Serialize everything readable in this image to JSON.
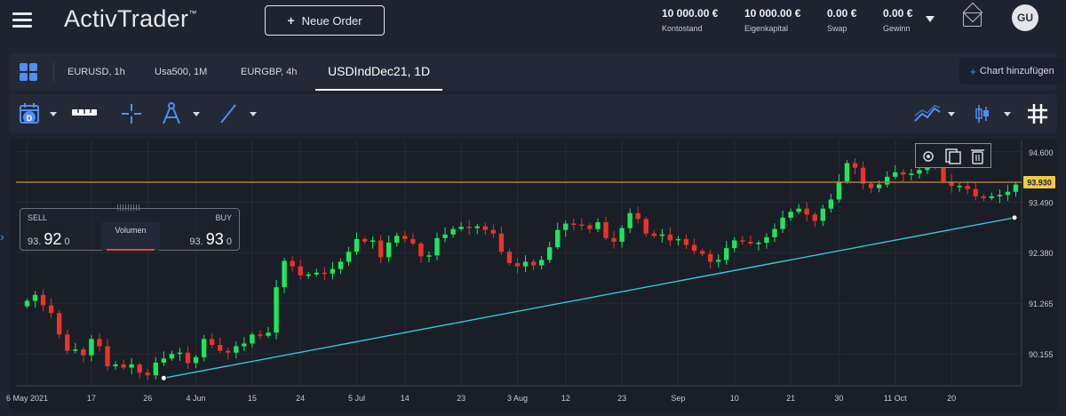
{
  "header": {
    "logo": "ActivTrader",
    "logo_mark": "™",
    "new_order_label": "Neue Order",
    "account": [
      {
        "value": "10 000.00 €",
        "label": "Kontostand"
      },
      {
        "value": "10 000.00 €",
        "label": "Eigenkapital"
      },
      {
        "value": "0.00 €",
        "label": "Swap"
      },
      {
        "value": "0.00 €",
        "label": "Gewinn"
      }
    ],
    "user_initials": "GU"
  },
  "tabs": [
    {
      "label": "EURUSD, 1h"
    },
    {
      "label": "Usa500, 1M"
    },
    {
      "label": "EURGBP, 4h"
    },
    {
      "label": "USDIndDec21, 1D",
      "active": true
    }
  ],
  "add_chart_label": "Chart hinzufügen",
  "trade": {
    "sell_label": "SELL",
    "buy_label": "BUY",
    "sell_pre": "93.",
    "sell_big": "92",
    "sell_post": "0",
    "buy_pre": "93.",
    "buy_big": "93",
    "buy_post": "0",
    "volume_label": "Volumen"
  },
  "colors": {
    "accent": "#4f8ff0",
    "up": "#1ee65a",
    "down": "#e8332c",
    "trendline": "#38c8d8",
    "price_line": "#b07a3a",
    "price_tag": "#f0c94a"
  },
  "chart_data": {
    "type": "candlestick",
    "symbol": "USDIndDec21",
    "timeframe": "1D",
    "current_price": "93.930",
    "y_ticks": [
      "94.600",
      "93.490",
      "92.380",
      "91.265",
      "90.155"
    ],
    "ylim": [
      89.45,
      94.85
    ],
    "x_ticks": [
      "6 May 2021",
      "17",
      "26",
      "4 Jun",
      "15",
      "24",
      "5 Jul",
      "14",
      "23",
      "3 Aug",
      "12",
      "23",
      "Sep",
      "10",
      "21",
      "30",
      "11 Oct",
      "20"
    ],
    "closes": [
      91.32,
      91.45,
      91.22,
      91.05,
      90.58,
      90.22,
      90.25,
      90.12,
      90.48,
      90.32,
      89.88,
      89.92,
      89.85,
      89.92,
      89.74,
      89.68,
      89.96,
      90.05,
      90.15,
      90.18,
      89.95,
      90.08,
      90.48,
      90.35,
      90.22,
      90.18,
      90.32,
      90.38,
      90.58,
      90.55,
      90.62,
      91.62,
      92.2,
      92.08,
      91.88,
      91.9,
      91.94,
      91.92,
      92.02,
      92.18,
      92.4,
      92.68,
      92.62,
      92.65,
      92.28,
      92.6,
      92.75,
      92.68,
      92.58,
      92.3,
      92.32,
      92.7,
      92.78,
      92.9,
      92.95,
      92.92,
      92.96,
      92.88,
      92.8,
      92.4,
      92.15,
      92.08,
      92.18,
      92.1,
      92.22,
      92.5,
      92.88,
      93.02,
      93.0,
      92.98,
      92.9,
      93.05,
      92.7,
      92.62,
      92.92,
      93.25,
      93.12,
      92.8,
      92.75,
      92.78,
      92.65,
      92.68,
      92.55,
      92.42,
      92.35,
      92.18,
      92.22,
      92.48,
      92.65,
      92.62,
      92.58,
      92.6,
      92.72,
      92.9,
      93.15,
      93.28,
      93.35,
      93.22,
      93.08,
      93.35,
      93.55,
      93.95,
      94.35,
      94.25,
      93.9,
      93.8,
      93.88,
      94.05,
      94.15,
      94.1,
      94.12,
      94.2,
      94.45,
      94.28,
      93.95,
      93.85,
      93.85,
      93.78,
      93.62,
      93.58,
      93.62,
      93.65,
      93.72,
      93.88
    ],
    "trendline": [
      [
        0.0,
        89.62
      ],
      [
        1.0,
        93.15
      ]
    ]
  }
}
